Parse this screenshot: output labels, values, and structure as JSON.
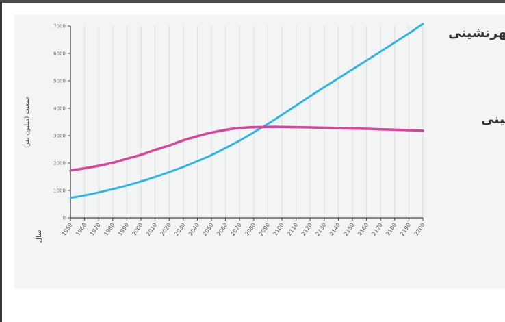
{
  "chart_data": {
    "type": "line",
    "xlabel": "سال",
    "ylabel": "جمعیت (میلیون نفر)",
    "x": [
      "1950",
      "1960",
      "1970",
      "1980",
      "1990",
      "2000",
      "2010",
      "2020",
      "2030",
      "2040",
      "2050",
      "2060",
      "2070",
      "2080",
      "2090",
      "2100",
      "2110",
      "2120",
      "2130",
      "2140",
      "2150",
      "2160",
      "2170",
      "2180",
      "2190",
      "2200"
    ],
    "yticks": [
      "0",
      "1000",
      "2000",
      "3000",
      "4000",
      "5000",
      "6000",
      "7000"
    ],
    "ylim": [
      0,
      7000
    ],
    "series": [
      {
        "name": "شهرنشینی",
        "color": "#2eb4e6",
        "values": [
          730,
          820,
          930,
          1050,
          1180,
          1330,
          1490,
          1670,
          1860,
          2070,
          2290,
          2550,
          2820,
          3120,
          3430,
          3760,
          4100,
          4440,
          4770,
          5090,
          5420,
          5740,
          6070,
          6400,
          6730,
          7080
        ]
      },
      {
        "name": "روستانشینی",
        "color": "#d8459c",
        "values": [
          1730,
          1810,
          1900,
          2010,
          2160,
          2300,
          2480,
          2640,
          2830,
          2980,
          3110,
          3210,
          3280,
          3310,
          3320,
          3320,
          3310,
          3300,
          3290,
          3280,
          3260,
          3250,
          3230,
          3220,
          3200,
          3180
        ]
      }
    ],
    "grid": true,
    "legend": "labels at line ends"
  }
}
